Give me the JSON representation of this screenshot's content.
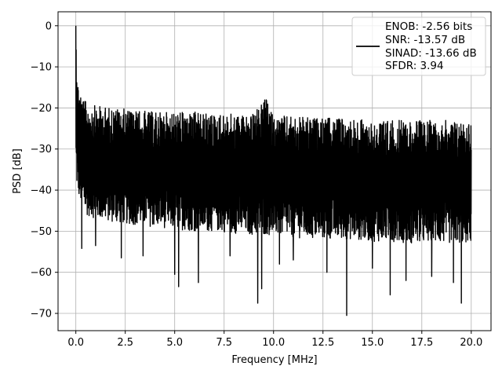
{
  "chart_data": {
    "type": "line",
    "xlabel": "Frequency [MHz]",
    "ylabel": "PSD [dB]",
    "xlim": [
      -0.9,
      21.0
    ],
    "ylim": [
      -74.2,
      3.4
    ],
    "xticks": [
      0.0,
      2.5,
      5.0,
      7.5,
      10.0,
      12.5,
      15.0,
      17.5,
      20.0
    ],
    "xtick_labels": [
      "0.0",
      "2.5",
      "5.0",
      "7.5",
      "10.0",
      "12.5",
      "15.0",
      "17.5",
      "20.0"
    ],
    "yticks": [
      0,
      -10,
      -20,
      -30,
      -40,
      -50,
      -60,
      -70
    ],
    "ytick_labels": [
      "0",
      "−10",
      "−20",
      "−30",
      "−40",
      "−50",
      "−60",
      "−70"
    ],
    "grid": true,
    "legend_position": "top-right",
    "series": [
      {
        "color": "#000000",
        "peak": {
          "x": 0.0,
          "y": 0.0
        },
        "envelope": {
          "x": [
            0.0,
            0.1,
            0.3,
            0.5,
            1.0,
            2.0,
            3.0,
            4.0,
            5.0,
            6.0,
            7.0,
            8.0,
            9.0,
            9.6,
            10.0,
            11.0,
            12.0,
            13.0,
            14.0,
            15.0,
            16.0,
            17.0,
            18.0,
            19.0,
            20.0
          ],
          "upper": [
            0.0,
            -13.0,
            -17.0,
            -18.5,
            -19.5,
            -20.0,
            -20.5,
            -21.0,
            -21.0,
            -21.0,
            -21.5,
            -21.5,
            -21.5,
            -17.5,
            -22.0,
            -22.0,
            -22.5,
            -22.5,
            -22.5,
            -23.0,
            -23.0,
            -23.0,
            -23.0,
            -23.0,
            -23.0
          ],
          "lower": [
            -38.0,
            -41.0,
            -44.0,
            -46.0,
            -47.0,
            -48.0,
            -48.5,
            -49.0,
            -49.5,
            -50.0,
            -50.0,
            -50.5,
            -51.0,
            -51.0,
            -51.0,
            -51.5,
            -52.0,
            -52.0,
            -52.0,
            -52.5,
            -52.5,
            -53.0,
            -53.0,
            -53.0,
            -53.0
          ]
        },
        "dips": [
          {
            "x": 0.3,
            "y": -54.2
          },
          {
            "x": 1.0,
            "y": -53.5
          },
          {
            "x": 2.3,
            "y": -56.5
          },
          {
            "x": 3.4,
            "y": -56.0
          },
          {
            "x": 5.0,
            "y": -60.5
          },
          {
            "x": 5.2,
            "y": -63.5
          },
          {
            "x": 6.2,
            "y": -62.5
          },
          {
            "x": 7.8,
            "y": -56.0
          },
          {
            "x": 9.2,
            "y": -67.5
          },
          {
            "x": 9.4,
            "y": -64.0
          },
          {
            "x": 10.3,
            "y": -58.0
          },
          {
            "x": 11.0,
            "y": -57.0
          },
          {
            "x": 12.7,
            "y": -60.0
          },
          {
            "x": 13.7,
            "y": -70.5
          },
          {
            "x": 15.0,
            "y": -59.0
          },
          {
            "x": 15.9,
            "y": -65.5
          },
          {
            "x": 16.7,
            "y": -62.0
          },
          {
            "x": 18.0,
            "y": -61.0
          },
          {
            "x": 19.1,
            "y": -62.5
          },
          {
            "x": 19.5,
            "y": -67.5
          }
        ]
      }
    ],
    "legend": {
      "lines": [
        "ENOB: -2.56 bits",
        "SNR: -13.57 dB",
        "SINAD: -13.66 dB",
        "SFDR: 3.94"
      ]
    }
  }
}
